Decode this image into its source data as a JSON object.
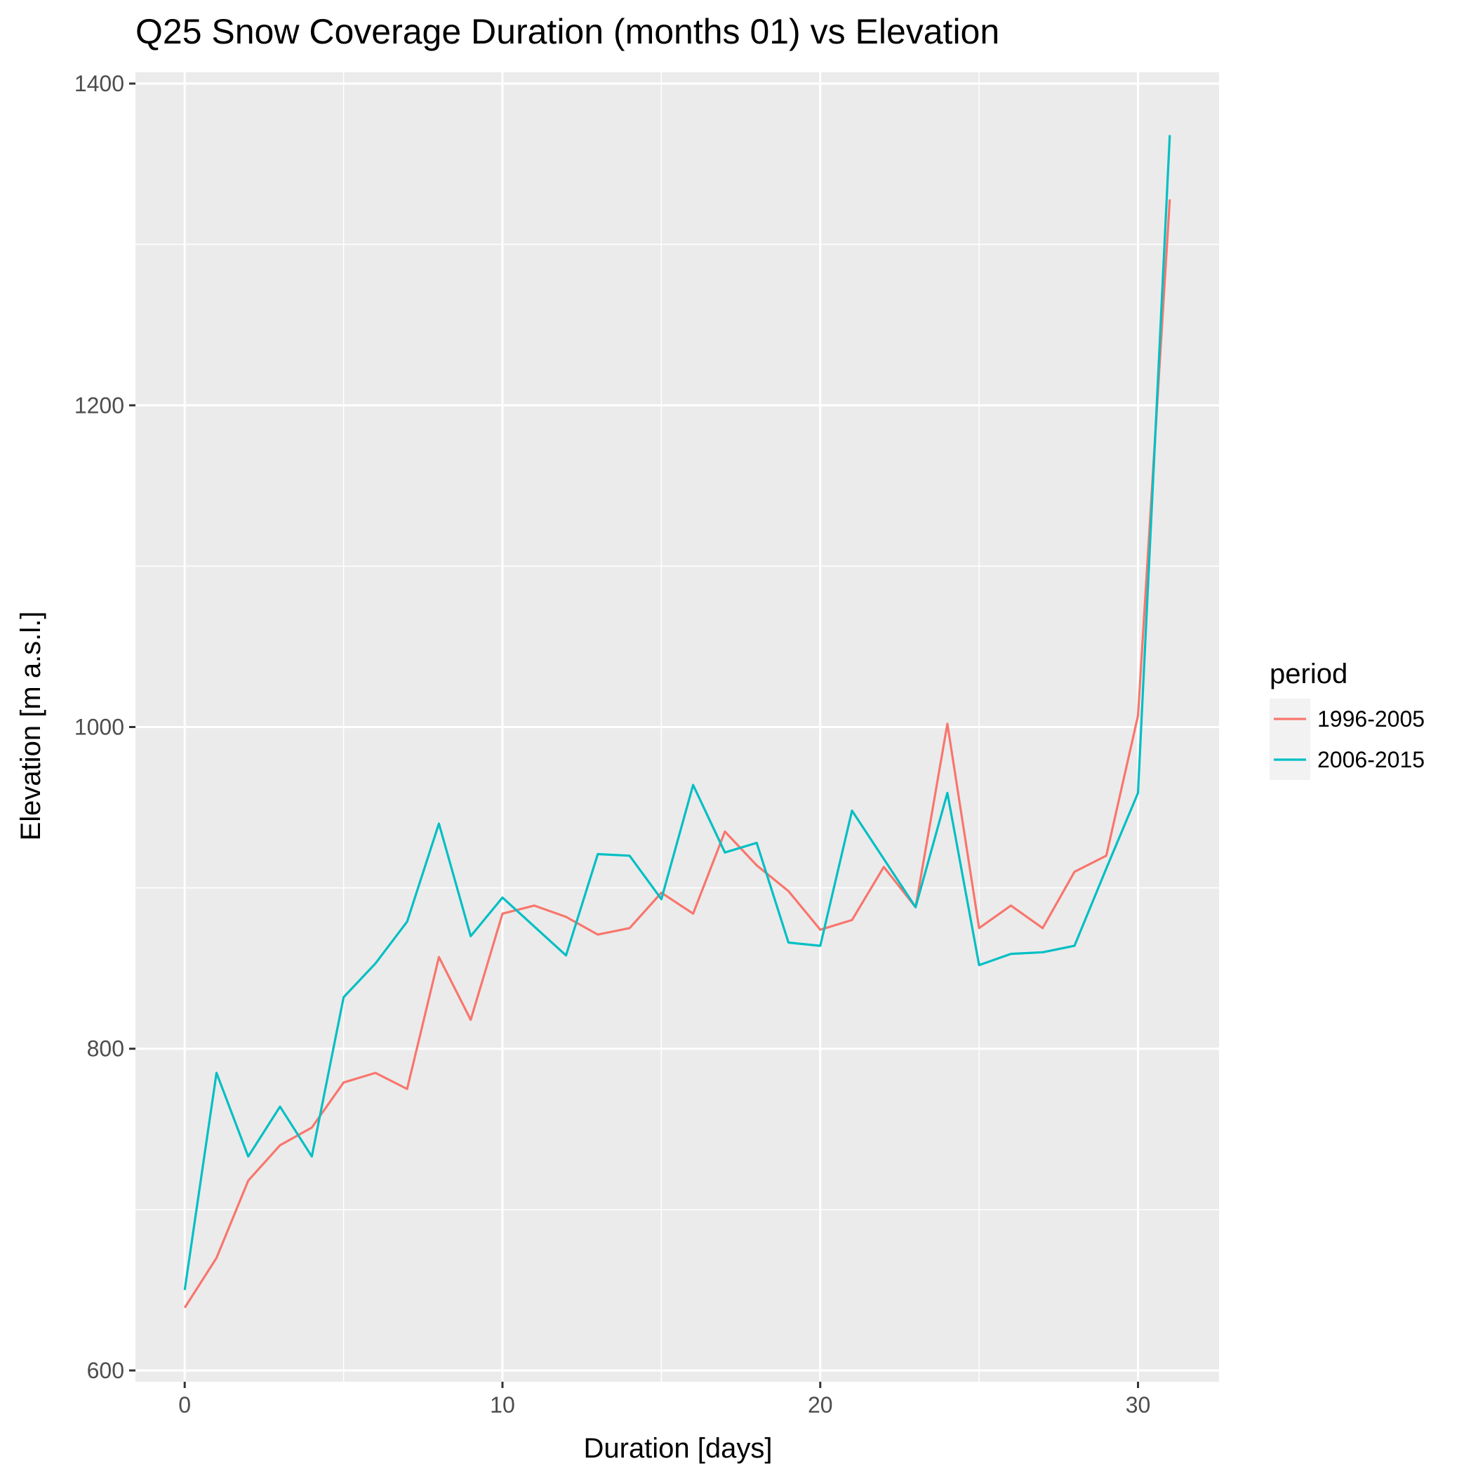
{
  "chart_data": {
    "type": "line",
    "title": "Q25 Snow Coverage Duration (months 01) vs Elevation",
    "xlabel": "Duration [days]",
    "ylabel": "Elevation [m a.s.l.]",
    "xlim": [
      -1.55,
      32.55
    ],
    "ylim": [
      593,
      1407
    ],
    "x_ticks": [
      0,
      10,
      20,
      30
    ],
    "y_ticks": [
      600,
      800,
      1000,
      1200,
      1400
    ],
    "grid": true,
    "legend": {
      "title": "period",
      "position": "right"
    },
    "x": [
      0,
      1,
      2,
      3,
      4,
      5,
      6,
      7,
      8,
      9,
      10,
      11,
      12,
      13,
      14,
      15,
      16,
      17,
      18,
      19,
      20,
      21,
      22,
      23,
      24,
      25,
      26,
      27,
      28,
      29,
      30,
      31
    ],
    "series": [
      {
        "name": "1996-2005",
        "color": "#F8766D",
        "values": [
          639,
          670,
          718,
          740,
          751,
          779,
          785,
          775,
          857,
          818,
          884,
          889,
          882,
          871,
          875,
          897,
          884,
          935,
          914,
          898,
          874,
          880,
          913,
          888,
          1002,
          875,
          889,
          875,
          910,
          920,
          1007,
          1328
        ]
      },
      {
        "name": "2006-2015",
        "color": "#00BFC4",
        "values": [
          650,
          785,
          733,
          764,
          733,
          832,
          853,
          879,
          940,
          870,
          894,
          876,
          858,
          921,
          920,
          893,
          964,
          922,
          928,
          866,
          864,
          948,
          918,
          888,
          959,
          852,
          859,
          860,
          864,
          912,
          959,
          1368
        ]
      }
    ]
  }
}
